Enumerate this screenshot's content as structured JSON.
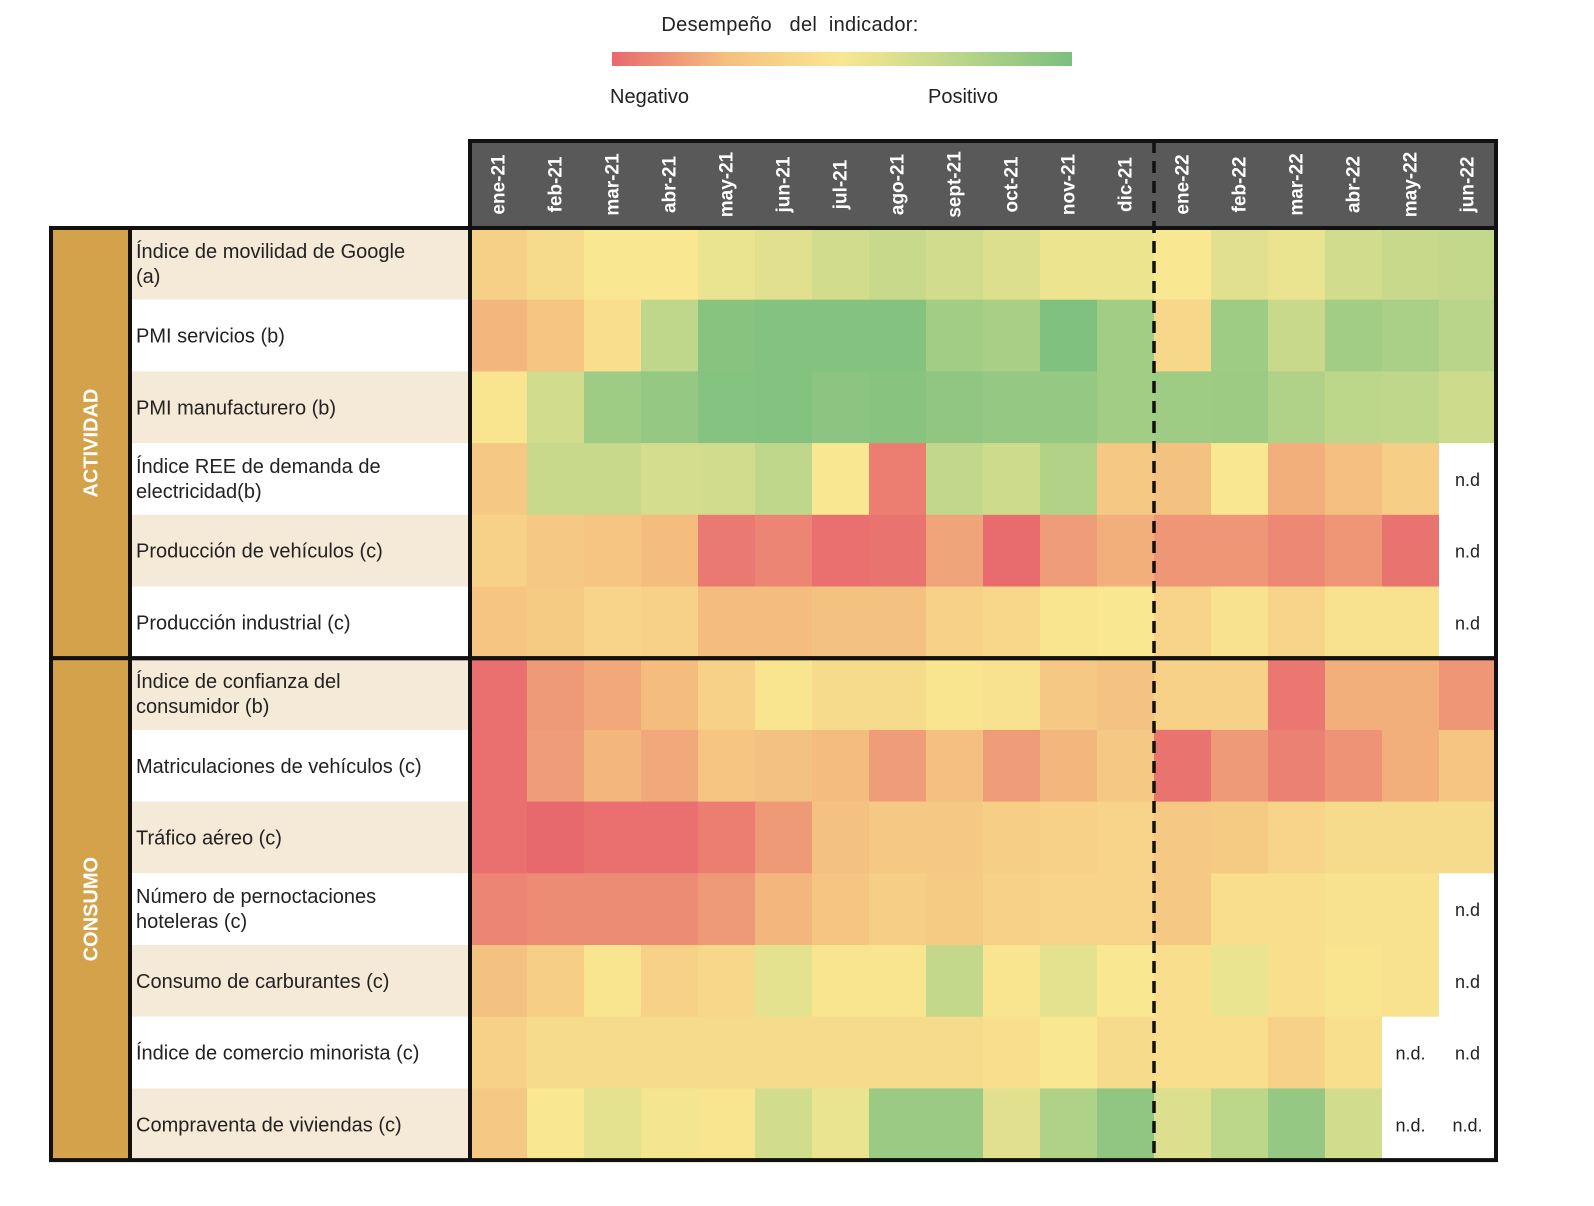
{
  "legend": {
    "title": "Desempeño   del  indicador:",
    "negative_label": "Negativo",
    "positive_label": "Positivo",
    "gradient_colors": [
      "#e8696d",
      "#f4c07f",
      "#f9e792",
      "#bcd68a",
      "#7bbf7e"
    ]
  },
  "chart_data": {
    "type": "heatmap",
    "columns": [
      "ene-21",
      "feb-21",
      "mar-21",
      "abr-21",
      "may-21",
      "jun-21",
      "jul-21",
      "ago-21",
      "sept-21",
      "oct-21",
      "nov-21",
      "dic-21",
      "ene-22",
      "feb-22",
      "mar-22",
      "abr-22",
      "may-22",
      "jun-22"
    ],
    "value_scale": "performance score from 0 (negative, red) to 1 (positive, green); null = text cell",
    "groups": [
      {
        "name": "ACTIVIDAD",
        "rows": [
          {
            "label": "Índice de movilidad de Google (a)",
            "values": [
              0.35,
              0.42,
              0.5,
              0.5,
              0.56,
              0.6,
              0.66,
              0.7,
              0.66,
              0.62,
              0.55,
              0.55,
              0.5,
              0.6,
              0.56,
              0.66,
              0.7,
              0.72
            ]
          },
          {
            "label": "PMI servicios (b)",
            "values": [
              0.22,
              0.28,
              0.44,
              0.74,
              0.95,
              0.97,
              0.97,
              0.97,
              0.85,
              0.83,
              0.98,
              0.85,
              0.4,
              0.86,
              0.7,
              0.85,
              0.82,
              0.76
            ]
          },
          {
            "label": "PMI manufacturero (b)",
            "values": [
              0.48,
              0.66,
              0.86,
              0.9,
              0.96,
              0.97,
              0.94,
              0.95,
              0.92,
              0.9,
              0.9,
              0.85,
              0.86,
              0.87,
              0.8,
              0.75,
              0.74,
              0.68
            ]
          },
          {
            "label": "Índice REE de demanda de electricidad(b)",
            "values": [
              0.3,
              0.7,
              0.7,
              0.65,
              0.66,
              0.74,
              0.5,
              0.06,
              0.73,
              0.68,
              0.79,
              0.3,
              0.26,
              0.5,
              0.2,
              0.25,
              0.34,
              null
            ],
            "text": {
              "17": "n.d"
            }
          },
          {
            "label": "Producción de vehículos (c)",
            "values": [
              0.36,
              0.3,
              0.28,
              0.24,
              0.05,
              0.08,
              0.02,
              0.03,
              0.17,
              0.01,
              0.15,
              0.2,
              0.13,
              0.13,
              0.09,
              0.13,
              0.03,
              null
            ],
            "text": {
              "17": "n.d"
            }
          },
          {
            "label": "Producción industrial (c)",
            "values": [
              0.28,
              0.32,
              0.38,
              0.36,
              0.24,
              0.24,
              0.26,
              0.26,
              0.36,
              0.4,
              0.48,
              0.5,
              0.38,
              0.46,
              0.38,
              0.47,
              0.46,
              null
            ],
            "text": {
              "17": "n.d"
            }
          }
        ]
      },
      {
        "name": "CONSUMO",
        "rows": [
          {
            "label": "Índice de confianza del consumidor (b)",
            "values": [
              0.02,
              0.14,
              0.18,
              0.24,
              0.36,
              0.48,
              0.42,
              0.42,
              0.48,
              0.46,
              0.3,
              0.27,
              0.36,
              0.36,
              0.04,
              0.2,
              0.2,
              0.13
            ]
          },
          {
            "label": "Matriculaciones de vehículos (c)",
            "values": [
              0.02,
              0.15,
              0.22,
              0.18,
              0.28,
              0.26,
              0.24,
              0.15,
              0.25,
              0.15,
              0.22,
              0.3,
              0.03,
              0.14,
              0.07,
              0.12,
              0.2,
              0.28
            ]
          },
          {
            "label": "Tráfico aéreo (c)",
            "values": [
              0.02,
              0.0,
              0.02,
              0.02,
              0.06,
              0.14,
              0.26,
              0.3,
              0.3,
              0.34,
              0.36,
              0.38,
              0.3,
              0.32,
              0.38,
              0.42,
              0.42,
              0.42
            ]
          },
          {
            "label": "Número de pernoctaciones hoteleras (c)",
            "values": [
              0.08,
              0.1,
              0.1,
              0.1,
              0.14,
              0.22,
              0.28,
              0.34,
              0.32,
              0.36,
              0.38,
              0.38,
              0.3,
              0.44,
              0.44,
              0.46,
              0.46,
              null
            ],
            "text": {
              "17": "n.d"
            }
          },
          {
            "label": "Consumo de carburantes (c)",
            "values": [
              0.26,
              0.34,
              0.48,
              0.36,
              0.4,
              0.58,
              0.48,
              0.48,
              0.72,
              0.48,
              0.58,
              0.5,
              0.44,
              0.56,
              0.44,
              0.48,
              0.47,
              null
            ],
            "text": {
              "17": "n.d"
            }
          },
          {
            "label": "Índice de comercio minorista (c)",
            "values": [
              0.36,
              0.42,
              0.42,
              0.42,
              0.42,
              0.42,
              0.42,
              0.42,
              0.42,
              0.44,
              0.5,
              0.42,
              0.44,
              0.44,
              0.36,
              0.45,
              null,
              null
            ],
            "text": {
              "16": "n.d.",
              "17": "n.d"
            }
          },
          {
            "label": "Compraventa de viviendas (c)",
            "values": [
              0.3,
              0.5,
              0.58,
              0.52,
              0.48,
              0.66,
              0.56,
              0.88,
              0.88,
              0.6,
              0.8,
              0.92,
              0.62,
              0.75,
              0.9,
              0.66,
              null,
              null
            ],
            "text": {
              "16": "n.d.",
              "17": "n.d."
            }
          }
        ]
      }
    ],
    "divider_after_column": "dic-21"
  }
}
